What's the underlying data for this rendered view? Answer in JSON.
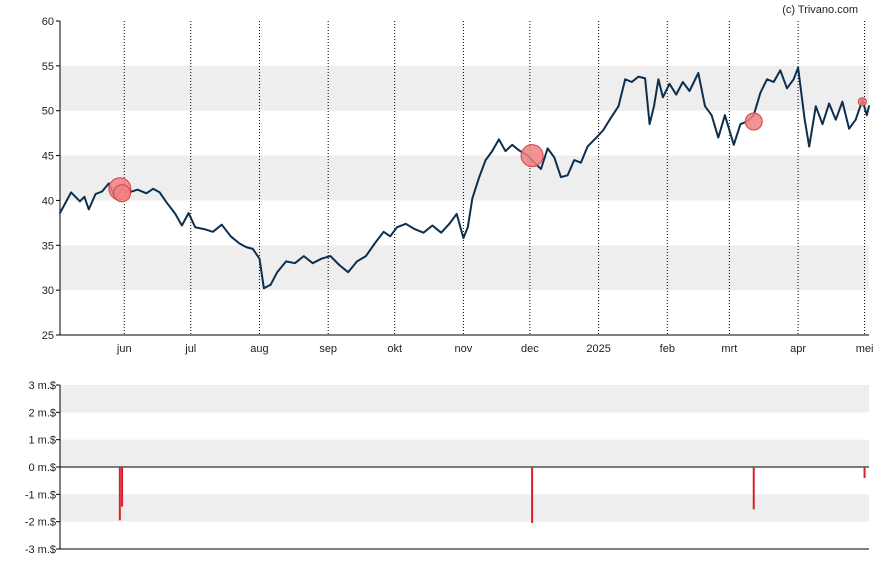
{
  "copyright": "(c) Trivano.com",
  "colors": {
    "price_line": "#0d2f4f",
    "marker_fill": "#f08080",
    "marker_stroke": "#d04048",
    "volume_bar": "#d8202a",
    "band": "#eeeeee",
    "axis": "#000000",
    "vgrid": "#000000"
  },
  "chart_data": [
    {
      "type": "line",
      "ylim": [
        25,
        60
      ],
      "y_ticks": [
        "25",
        "30",
        "35",
        "40",
        "45",
        "50",
        "55",
        "60"
      ],
      "x_ticks": [
        {
          "label": "jun",
          "date": "2024-06-01"
        },
        {
          "label": "jul",
          "date": "2024-07-01"
        },
        {
          "label": "aug",
          "date": "2024-08-01"
        },
        {
          "label": "sep",
          "date": "2024-09-01"
        },
        {
          "label": "okt",
          "date": "2024-10-01"
        },
        {
          "label": "nov",
          "date": "2024-11-01"
        },
        {
          "label": "dec",
          "date": "2024-12-01"
        },
        {
          "label": "2025",
          "date": "2025-01-01"
        },
        {
          "label": "feb",
          "date": "2025-02-01"
        },
        {
          "label": "mrt",
          "date": "2025-03-01"
        },
        {
          "label": "apr",
          "date": "2025-04-01"
        },
        {
          "label": "mei",
          "date": "2025-05-01"
        }
      ],
      "xlim": [
        "2024-05-03",
        "2025-05-03"
      ],
      "grid": "vertical dotted at month starts",
      "series": [
        {
          "points": [
            [
              "2024-05-03",
              38.6
            ],
            [
              "2024-05-08",
              40.9
            ],
            [
              "2024-05-12",
              39.9
            ],
            [
              "2024-05-14",
              40.4
            ],
            [
              "2024-05-16",
              39.0
            ],
            [
              "2024-05-19",
              40.7
            ],
            [
              "2024-05-22",
              41.0
            ],
            [
              "2024-05-25",
              41.9
            ],
            [
              "2024-05-28",
              40.2
            ],
            [
              "2024-05-31",
              41.3
            ],
            [
              "2024-06-03",
              40.9
            ],
            [
              "2024-06-07",
              41.2
            ],
            [
              "2024-06-11",
              40.8
            ],
            [
              "2024-06-14",
              41.3
            ],
            [
              "2024-06-17",
              40.9
            ],
            [
              "2024-06-20",
              39.8
            ],
            [
              "2024-06-24",
              38.5
            ],
            [
              "2024-06-27",
              37.2
            ],
            [
              "2024-06-30",
              38.6
            ],
            [
              "2024-07-03",
              37.0
            ],
            [
              "2024-07-07",
              36.8
            ],
            [
              "2024-07-11",
              36.5
            ],
            [
              "2024-07-15",
              37.3
            ],
            [
              "2024-07-19",
              36.0
            ],
            [
              "2024-07-23",
              35.2
            ],
            [
              "2024-07-26",
              34.8
            ],
            [
              "2024-07-29",
              34.6
            ],
            [
              "2024-08-01",
              33.5
            ],
            [
              "2024-08-03",
              30.2
            ],
            [
              "2024-08-06",
              30.6
            ],
            [
              "2024-08-09",
              32.0
            ],
            [
              "2024-08-13",
              33.2
            ],
            [
              "2024-08-17",
              33.0
            ],
            [
              "2024-08-21",
              33.8
            ],
            [
              "2024-08-25",
              33.0
            ],
            [
              "2024-08-29",
              33.5
            ],
            [
              "2024-09-02",
              33.8
            ],
            [
              "2024-09-06",
              32.8
            ],
            [
              "2024-09-10",
              32.0
            ],
            [
              "2024-09-14",
              33.2
            ],
            [
              "2024-09-18",
              33.8
            ],
            [
              "2024-09-22",
              35.2
            ],
            [
              "2024-09-26",
              36.5
            ],
            [
              "2024-09-29",
              36.0
            ],
            [
              "2024-10-02",
              37.0
            ],
            [
              "2024-10-06",
              37.4
            ],
            [
              "2024-10-10",
              36.8
            ],
            [
              "2024-10-14",
              36.4
            ],
            [
              "2024-10-18",
              37.2
            ],
            [
              "2024-10-22",
              36.4
            ],
            [
              "2024-10-26",
              37.5
            ],
            [
              "2024-10-29",
              38.5
            ],
            [
              "2024-11-01",
              35.8
            ],
            [
              "2024-11-03",
              37.0
            ],
            [
              "2024-11-05",
              40.2
            ],
            [
              "2024-11-08",
              42.5
            ],
            [
              "2024-11-11",
              44.5
            ],
            [
              "2024-11-14",
              45.5
            ],
            [
              "2024-11-17",
              46.8
            ],
            [
              "2024-11-20",
              45.5
            ],
            [
              "2024-11-23",
              46.2
            ],
            [
              "2024-11-26",
              45.6
            ],
            [
              "2024-11-30",
              45.0
            ],
            [
              "2024-12-03",
              44.2
            ],
            [
              "2024-12-06",
              43.5
            ],
            [
              "2024-12-09",
              45.8
            ],
            [
              "2024-12-12",
              44.8
            ],
            [
              "2024-12-15",
              42.6
            ],
            [
              "2024-12-18",
              42.8
            ],
            [
              "2024-12-21",
              44.5
            ],
            [
              "2024-12-24",
              44.2
            ],
            [
              "2024-12-27",
              46.0
            ],
            [
              "2024-12-31",
              47.0
            ],
            [
              "2025-01-03",
              47.8
            ],
            [
              "2025-01-06",
              49.0
            ],
            [
              "2025-01-10",
              50.5
            ],
            [
              "2025-01-13",
              53.5
            ],
            [
              "2025-01-16",
              53.2
            ],
            [
              "2025-01-19",
              53.8
            ],
            [
              "2025-01-22",
              53.6
            ],
            [
              "2025-01-24",
              48.5
            ],
            [
              "2025-01-26",
              50.5
            ],
            [
              "2025-01-28",
              53.5
            ],
            [
              "2025-01-30",
              51.5
            ],
            [
              "2025-02-02",
              53.0
            ],
            [
              "2025-02-05",
              51.8
            ],
            [
              "2025-02-08",
              53.2
            ],
            [
              "2025-02-11",
              52.2
            ],
            [
              "2025-02-15",
              54.2
            ],
            [
              "2025-02-18",
              50.5
            ],
            [
              "2025-02-21",
              49.5
            ],
            [
              "2025-02-24",
              47.0
            ],
            [
              "2025-02-27",
              49.5
            ],
            [
              "2025-03-03",
              46.2
            ],
            [
              "2025-03-06",
              48.5
            ],
            [
              "2025-03-09",
              48.8
            ],
            [
              "2025-03-12",
              49.5
            ],
            [
              "2025-03-15",
              52.0
            ],
            [
              "2025-03-18",
              53.5
            ],
            [
              "2025-03-21",
              53.2
            ],
            [
              "2025-03-24",
              54.5
            ],
            [
              "2025-03-27",
              52.5
            ],
            [
              "2025-03-30",
              53.5
            ],
            [
              "2025-04-01",
              54.8
            ],
            [
              "2025-04-04",
              49.0
            ],
            [
              "2025-04-06",
              46.0
            ],
            [
              "2025-04-09",
              50.5
            ],
            [
              "2025-04-12",
              48.5
            ],
            [
              "2025-04-15",
              50.8
            ],
            [
              "2025-04-18",
              49.0
            ],
            [
              "2025-04-21",
              51.0
            ],
            [
              "2025-04-24",
              48.0
            ],
            [
              "2025-04-27",
              49.0
            ],
            [
              "2025-04-30",
              51.2
            ],
            [
              "2025-05-02",
              49.5
            ],
            [
              "2025-05-03",
              50.5
            ]
          ]
        }
      ],
      "markers": [
        {
          "date": "2024-05-30",
          "value": 41.3,
          "size": "large"
        },
        {
          "date": "2024-05-31",
          "value": 40.8,
          "size": "small"
        },
        {
          "date": "2024-12-02",
          "value": 45.0,
          "size": "large"
        },
        {
          "date": "2025-03-12",
          "value": 48.8,
          "size": "small"
        },
        {
          "date": "2025-04-30",
          "value": 51.0,
          "size": "tiny"
        }
      ]
    },
    {
      "type": "bar",
      "ylim": [
        -3,
        3
      ],
      "unit": "m.$",
      "y_ticks": [
        "3 m.$",
        "2 m.$",
        "1 m.$",
        "0 m.$",
        "-1 m.$",
        "-2 m.$",
        "-3 m.$"
      ],
      "xlim": [
        "2024-05-03",
        "2025-05-03"
      ],
      "bars": [
        {
          "date": "2024-05-30",
          "value": -1.95
        },
        {
          "date": "2024-05-31",
          "value": -1.45
        },
        {
          "date": "2024-12-02",
          "value": -2.05
        },
        {
          "date": "2025-03-12",
          "value": -1.55
        },
        {
          "date": "2025-05-01",
          "value": -0.4
        }
      ]
    }
  ]
}
